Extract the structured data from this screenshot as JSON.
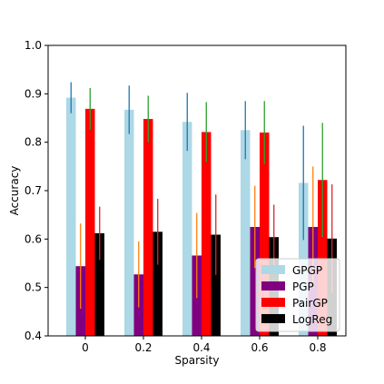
{
  "chart_data": {
    "type": "bar",
    "title": "",
    "xlabel": "Sparsity",
    "ylabel": "Accuracy",
    "ylim": [
      0.4,
      1.0
    ],
    "yticks": [
      "0.4",
      "0.5",
      "0.6",
      "0.7",
      "0.8",
      "0.9",
      "1.0"
    ],
    "categories": [
      "0",
      "0.2",
      "0.4",
      "0.6",
      "0.8"
    ],
    "grid": false,
    "legend_position": "bottom-right",
    "series": [
      {
        "name": "GPGP",
        "color": "#add8e6",
        "err_color": "#1f77b4",
        "values": [
          0.892,
          0.867,
          0.842,
          0.825,
          0.716
        ],
        "errors": [
          0.032,
          0.05,
          0.06,
          0.06,
          0.118
        ]
      },
      {
        "name": "PGP",
        "color": "#800080",
        "err_color": "#ff7f0e",
        "values": [
          0.544,
          0.527,
          0.566,
          0.625,
          0.625
        ],
        "errors": [
          0.088,
          0.068,
          0.088,
          0.085,
          0.125
        ]
      },
      {
        "name": "PairGP",
        "color": "#ff0000",
        "err_color": "#2ca02c",
        "values": [
          0.869,
          0.848,
          0.821,
          0.82,
          0.722
        ],
        "errors": [
          0.043,
          0.048,
          0.062,
          0.065,
          0.118
        ]
      },
      {
        "name": "LogReg",
        "color": "#000000",
        "err_color": "#d62728",
        "values": [
          0.612,
          0.615,
          0.609,
          0.604,
          0.601
        ],
        "errors": [
          0.055,
          0.068,
          0.083,
          0.067,
          0.112
        ]
      }
    ]
  }
}
